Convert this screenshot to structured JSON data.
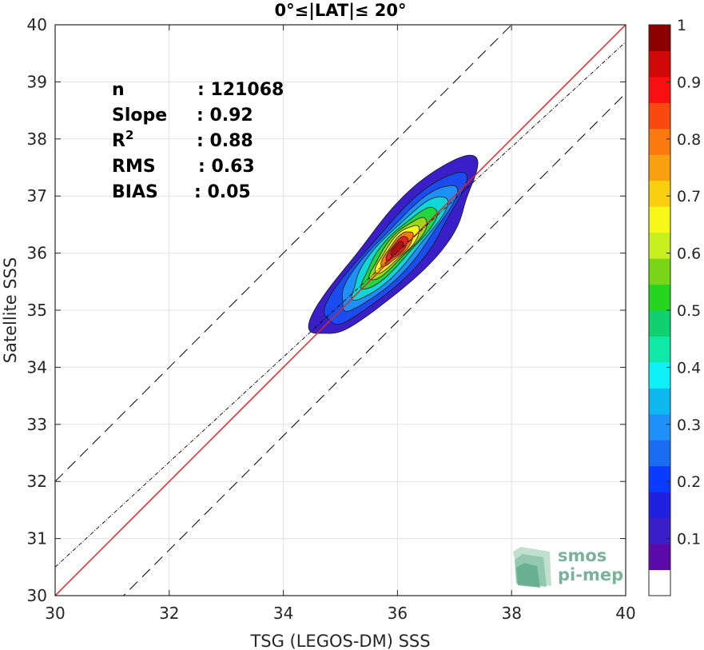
{
  "chart_data": {
    "type": "contour",
    "title": "0°≤|LAT|≤ 20°",
    "xlabel": "TSG (LEGOS-DM) SSS",
    "ylabel": "Satellite SSS",
    "xlim": [
      30,
      40
    ],
    "ylim": [
      30,
      40
    ],
    "xticks": [
      30,
      32,
      34,
      36,
      38,
      40
    ],
    "yticks": [
      30,
      31,
      32,
      33,
      34,
      35,
      36,
      37,
      38,
      39,
      40
    ],
    "grid": true,
    "stats": [
      {
        "name": "n",
        "value": ": 121068"
      },
      {
        "name": "Slope",
        "value": ": 0.92"
      },
      {
        "name": "R",
        "sup": "2",
        "value": ": 0.88"
      },
      {
        "name": "RMS",
        "value": ": 0.63"
      },
      {
        "name": "BIAS",
        "value": ": 0.05"
      }
    ],
    "lines": [
      {
        "kind": "identity",
        "color": "#d62728",
        "slope": 1,
        "intercept": 0
      },
      {
        "kind": "regression",
        "color": "#000000",
        "slope": 0.92,
        "intercept": 2.9
      },
      {
        "kind": "upper-bound",
        "color": "#000000",
        "slope": 1,
        "intercept": 2
      },
      {
        "kind": "lower-bound",
        "color": "#000000",
        "slope": 1,
        "intercept": -1.2
      }
    ],
    "density_center": [
      35.97,
      36.05
    ],
    "density_direction": [
      1,
      1.1
    ],
    "contour_levels": [
      {
        "level": 0.05,
        "color": "#3a1fc8",
        "half_length": 2.05,
        "half_width": 0.55,
        "offset": 0
      },
      {
        "level": 0.15,
        "color": "#1a4cf0",
        "half_length": 1.75,
        "half_width": 0.42,
        "offset": -0.05
      },
      {
        "level": 0.25,
        "color": "#1e90f8",
        "half_length": 1.45,
        "half_width": 0.34,
        "offset": 0
      },
      {
        "level": 0.35,
        "color": "#10d6d8",
        "half_length": 1.2,
        "half_width": 0.28,
        "offset": 0.03
      },
      {
        "level": 0.45,
        "color": "#25d540",
        "half_length": 0.95,
        "half_width": 0.22,
        "offset": 0.05
      },
      {
        "level": 0.55,
        "color": "#9ed518",
        "half_length": 0.72,
        "half_width": 0.18,
        "offset": 0.05
      },
      {
        "level": 0.65,
        "color": "#f7f71a",
        "half_length": 0.55,
        "half_width": 0.15,
        "offset": 0.04
      },
      {
        "level": 0.75,
        "color": "#fb7a10",
        "half_length": 0.4,
        "half_width": 0.12,
        "offset": 0.04
      },
      {
        "level": 0.85,
        "color": "#e0251f",
        "half_length": 0.27,
        "half_width": 0.09,
        "offset": 0.04
      },
      {
        "level": 0.95,
        "color": "#b01010",
        "half_length": 0.15,
        "half_width": 0.06,
        "offset": 0.04
      }
    ],
    "colorbar": {
      "min": 0,
      "max": 1,
      "ticks": [
        0.1,
        0.2,
        0.3,
        0.4,
        0.5,
        0.6,
        0.7,
        0.8,
        0.9,
        1
      ],
      "tick_labels": [
        "0.1",
        "0.2",
        "0.3",
        "0.4",
        "0.5",
        "0.6",
        "0.7",
        "0.8",
        "0.9",
        "1"
      ],
      "colors": [
        "#ffffff",
        "#5a0aa8",
        "#3a1fc8",
        "#2020e0",
        "#0a3cff",
        "#1a6cf0",
        "#1e90f8",
        "#10b8f0",
        "#10f0f8",
        "#10e8a8",
        "#10d070",
        "#25d520",
        "#7ad518",
        "#c8f020",
        "#f7f71a",
        "#f8d010",
        "#f8a010",
        "#fb7a10",
        "#f84a10",
        "#f81010",
        "#d00808",
        "#8c0000"
      ]
    }
  },
  "logo": {
    "line1": "smos",
    "line2": "pi-mep"
  }
}
